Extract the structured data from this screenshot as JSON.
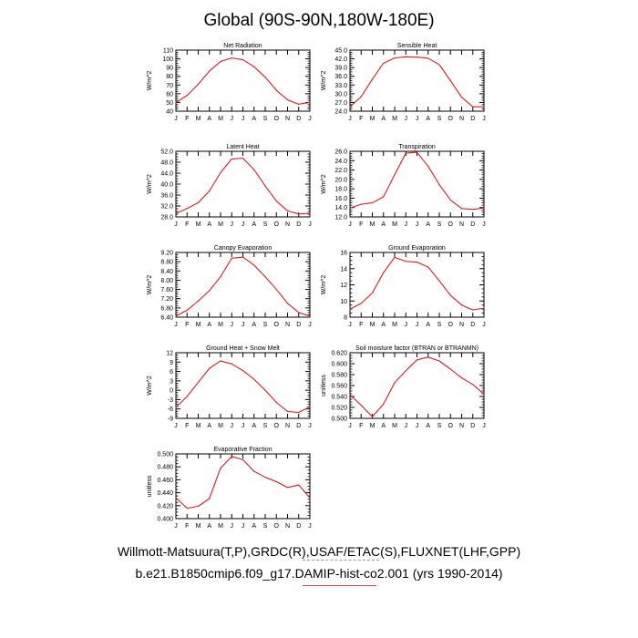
{
  "title": "Global (90S-90N,180W-180E)",
  "footer": {
    "line1": "Willmott-Matsuura(T,P),GRDC(R),USAF/ETAC(S),FLUXNET(LHF,GPP)",
    "line2": "b.e21.B1850cmip6.f09_g17.DAMIP-hist-co2.001 (yrs 1990-2014)"
  },
  "colors": {
    "line": "#e21b1b",
    "axis": "#000000"
  },
  "chart_data": [
    {
      "type": "line",
      "title": "Net Radiation",
      "ylabel": "W/m^2",
      "x": [
        "J",
        "F",
        "M",
        "A",
        "M",
        "J",
        "J",
        "A",
        "S",
        "O",
        "N",
        "D",
        "J"
      ],
      "yticks": [
        "40",
        "50",
        "60",
        "70",
        "80",
        "90",
        "100",
        "110"
      ],
      "ylim": [
        40,
        110
      ],
      "series": [
        {
          "values": [
            50,
            58,
            71,
            86,
            97,
            101,
            99,
            91,
            79,
            64,
            53,
            48,
            50
          ]
        }
      ]
    },
    {
      "type": "line",
      "title": "Sensible Heat",
      "ylabel": "W/m^2",
      "x": [
        "J",
        "F",
        "M",
        "A",
        "M",
        "J",
        "J",
        "A",
        "S",
        "O",
        "N",
        "D",
        "J"
      ],
      "yticks": [
        "24.0",
        "27.0",
        "30.0",
        "33.0",
        "36.0",
        "39.0",
        "42.0",
        "45.0"
      ],
      "ylim": [
        24,
        45
      ],
      "series": [
        {
          "values": [
            25.5,
            29,
            35,
            40.5,
            42.3,
            42.7,
            42.6,
            42.2,
            40,
            34.5,
            28.8,
            25.5,
            25.5
          ]
        }
      ]
    },
    {
      "type": "line",
      "title": "Latent Heat",
      "ylabel": "W/m^2",
      "x": [
        "J",
        "F",
        "M",
        "A",
        "M",
        "J",
        "J",
        "A",
        "S",
        "O",
        "N",
        "D",
        "J"
      ],
      "yticks": [
        "28.0",
        "32.0",
        "36.0",
        "40.0",
        "44.0",
        "48.0",
        "52.0"
      ],
      "ylim": [
        28,
        52
      ],
      "series": [
        {
          "values": [
            29.3,
            31.1,
            33.2,
            37.5,
            44.2,
            49.2,
            49.5,
            45.3,
            39.3,
            33.8,
            30.2,
            29.1,
            29.3
          ]
        }
      ]
    },
    {
      "type": "line",
      "title": "Transpiration",
      "ylabel": "W/m^2",
      "x": [
        "J",
        "F",
        "M",
        "A",
        "M",
        "J",
        "J",
        "A",
        "S",
        "O",
        "N",
        "D",
        "J"
      ],
      "yticks": [
        "12.0",
        "14.0",
        "16.0",
        "18.0",
        "20.0",
        "22.0",
        "24.0",
        "26.0"
      ],
      "ylim": [
        12,
        26
      ],
      "series": [
        {
          "values": [
            13.9,
            14.7,
            15,
            16.3,
            21,
            25.6,
            25.8,
            22.8,
            18.9,
            15.6,
            13.8,
            13.6,
            13.9
          ]
        }
      ]
    },
    {
      "type": "line",
      "title": "Canopy Evaporation",
      "ylabel": "W/m^2",
      "x": [
        "J",
        "F",
        "M",
        "A",
        "M",
        "J",
        "J",
        "A",
        "S",
        "O",
        "N",
        "D",
        "J"
      ],
      "yticks": [
        "6.40",
        "6.80",
        "7.20",
        "7.60",
        "8.00",
        "8.40",
        "8.80",
        "9.20"
      ],
      "ylim": [
        6.4,
        9.2
      ],
      "series": [
        {
          "values": [
            6.45,
            6.7,
            7.1,
            7.55,
            8.15,
            8.95,
            9.0,
            8.65,
            8.15,
            7.6,
            7.0,
            6.6,
            6.45
          ]
        }
      ]
    },
    {
      "type": "line",
      "title": "Ground Evaporation",
      "ylabel": "W/m^2",
      "x": [
        "J",
        "F",
        "M",
        "A",
        "M",
        "J",
        "J",
        "A",
        "S",
        "O",
        "N",
        "D",
        "J"
      ],
      "yticks": [
        "8",
        "10",
        "12",
        "14",
        "16"
      ],
      "ylim": [
        8,
        16
      ],
      "series": [
        {
          "values": [
            9,
            9.7,
            11,
            13.5,
            15.4,
            14.9,
            14.8,
            14.2,
            12.5,
            10.7,
            9.5,
            8.9,
            9.1
          ]
        }
      ]
    },
    {
      "type": "line",
      "title": "Ground Heat + Snow Melt",
      "ylabel": "W/m^2",
      "x": [
        "J",
        "F",
        "M",
        "A",
        "M",
        "J",
        "J",
        "A",
        "S",
        "O",
        "N",
        "D",
        "J"
      ],
      "yticks": [
        "-9",
        "-6",
        "-3",
        "0",
        "3",
        "6",
        "9",
        "12"
      ],
      "ylim": [
        -9,
        12
      ],
      "series": [
        {
          "values": [
            -5.5,
            -2,
            2.5,
            7,
            9.4,
            8.4,
            6.3,
            3.5,
            0,
            -3.9,
            -6.8,
            -7.1,
            -5.3
          ]
        }
      ]
    },
    {
      "type": "line",
      "title": "Soil moisture factor (BTRAN or BTRANMN)",
      "ylabel": "unitless",
      "x": [
        "J",
        "F",
        "M",
        "A",
        "M",
        "J",
        "J",
        "A",
        "S",
        "O",
        "N",
        "D",
        "J"
      ],
      "yticks": [
        "0.500",
        "0.520",
        "0.540",
        "0.560",
        "0.580",
        "0.600",
        "0.620"
      ],
      "ylim": [
        0.5,
        0.62
      ],
      "series": [
        {
          "values": [
            0.543,
            0.524,
            0.503,
            0.526,
            0.565,
            0.587,
            0.607,
            0.612,
            0.605,
            0.59,
            0.574,
            0.562,
            0.544
          ]
        }
      ]
    },
    {
      "type": "line",
      "title": "Evaporative Fraction",
      "ylabel": "unitless",
      "x": [
        "J",
        "F",
        "M",
        "A",
        "M",
        "J",
        "J",
        "A",
        "S",
        "O",
        "N",
        "D",
        "J"
      ],
      "yticks": [
        "0.400",
        "0.420",
        "0.440",
        "0.460",
        "0.480",
        "0.500"
      ],
      "ylim": [
        0.4,
        0.5
      ],
      "series": [
        {
          "values": [
            0.432,
            0.416,
            0.419,
            0.431,
            0.478,
            0.496,
            0.491,
            0.473,
            0.464,
            0.457,
            0.448,
            0.452,
            0.432
          ]
        }
      ]
    }
  ]
}
